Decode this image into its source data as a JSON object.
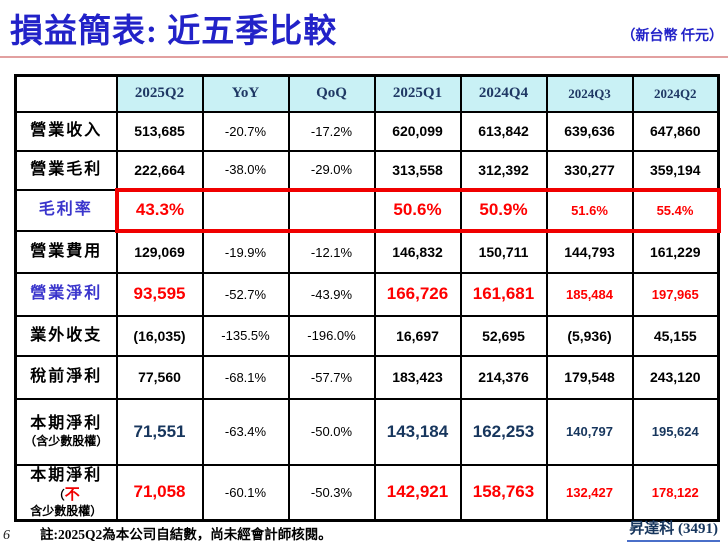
{
  "title": "損益簡表: 近五季比較",
  "unit_note": "（新台幣 仟元）",
  "page_number": "6",
  "footnote": "註:2025Q2為本公司自結數，尚未經會計師核閱。",
  "company_label": "昇達科 (3491)",
  "colors": {
    "title_blue": "#2222c8",
    "header_bg": "#c9f1f5",
    "header_text": "#1f3864",
    "label_blue": "#3a35cc",
    "value_red": "#fe0000",
    "value_navy": "#17365d",
    "highlight_box_red": "#f00000",
    "divider_pink": "#e2a0a0"
  },
  "table": {
    "headers": [
      "",
      "2025Q2",
      "YoY",
      "QoQ",
      "2025Q1",
      "2024Q4",
      "2024Q3",
      "2024Q2"
    ],
    "rows": [
      {
        "label": "營業收入",
        "style": "plain",
        "label_color": "black",
        "value_color": "black",
        "cells": [
          "513,685",
          "-20.7%",
          "-17.2%",
          "620,099",
          "613,842",
          "639,636",
          "647,860"
        ]
      },
      {
        "label": "營業毛利",
        "style": "plain",
        "label_color": "black",
        "value_color": "black",
        "cells": [
          "222,664",
          "-38.0%",
          "-29.0%",
          "313,558",
          "312,392",
          "330,277",
          "359,194"
        ]
      },
      {
        "label": "毛利率",
        "style": "big",
        "label_color": "blue",
        "value_color": "red",
        "boxed": true,
        "cells": [
          "43.3%",
          "",
          "",
          "50.6%",
          "50.9%",
          "51.6%",
          "55.4%"
        ]
      },
      {
        "label": "營業費用",
        "style": "plain",
        "label_color": "black",
        "value_color": "black",
        "cells": [
          "129,069",
          "-19.9%",
          "-12.1%",
          "146,832",
          "150,711",
          "144,793",
          "161,229"
        ]
      },
      {
        "label": "營業淨利",
        "style": "big",
        "label_color": "blue",
        "value_color": "red",
        "cells": [
          "93,595",
          "-52.7%",
          "-43.9%",
          "166,726",
          "161,681",
          "185,484",
          "197,965"
        ]
      },
      {
        "label": "業外收支",
        "style": "plain",
        "label_color": "black",
        "value_color": "black",
        "cells": [
          "(16,035)",
          "-135.5%",
          "-196.0%",
          "16,697",
          "52,695",
          "(5,936)",
          "45,155"
        ]
      },
      {
        "label": "稅前淨利",
        "style": "plain",
        "label_color": "black",
        "value_color": "black",
        "cells": [
          "77,560",
          "-68.1%",
          "-57.7%",
          "183,423",
          "214,376",
          "179,548",
          "243,120"
        ]
      },
      {
        "label": "本期淨利",
        "label2_pre": "（含少數股權）",
        "label2_red": "",
        "label2_post": "",
        "style": "big",
        "label_color": "black",
        "value_color": "navy",
        "cells": [
          "71,551",
          "-63.4%",
          "-50.0%",
          "143,184",
          "162,253",
          "140,797",
          "195,624"
        ]
      },
      {
        "label": "本期淨利",
        "label2_pre": "（",
        "label2_red": "不",
        "label2_post": "含少數股權）",
        "style": "big",
        "label_color": "black",
        "value_color": "red",
        "cells": [
          "71,058",
          "-60.1%",
          "-50.3%",
          "142,921",
          "158,763",
          "132,427",
          "178,122"
        ]
      }
    ]
  }
}
